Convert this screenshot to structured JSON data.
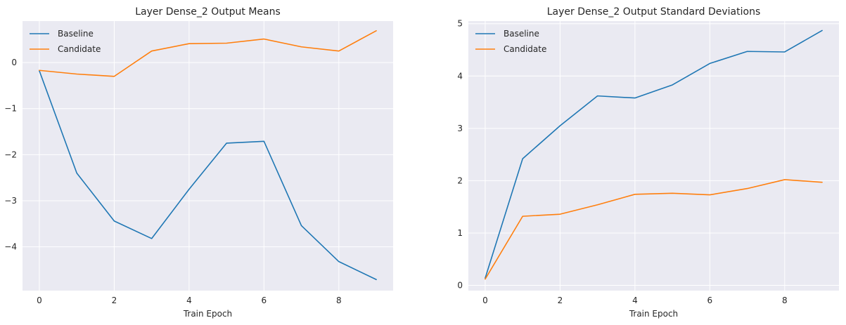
{
  "chart_data": [
    {
      "type": "line",
      "title": "Layer Dense_2 Output Means",
      "xlabel": "Train Epoch",
      "ylabel": "",
      "x": [
        0,
        1,
        2,
        3,
        4,
        5,
        6,
        7,
        8,
        9
      ],
      "xlim": [
        -0.45,
        9.45
      ],
      "ylim": [
        -4.95,
        0.9
      ],
      "xticks": [
        0,
        2,
        4,
        6,
        8
      ],
      "yticks": [
        0,
        -1,
        -2,
        -3,
        -4
      ],
      "ytick_labels": [
        "0",
        "−1",
        "−2",
        "−3",
        "−4"
      ],
      "grid": true,
      "legend_position": "top-left",
      "series": [
        {
          "name": "Baseline",
          "color": "#1f77b4",
          "values": [
            -0.18,
            -2.4,
            -3.44,
            -3.82,
            -2.75,
            -1.75,
            -1.71,
            -3.54,
            -4.32,
            -4.71
          ]
        },
        {
          "name": "Candidate",
          "color": "#ff7f0e",
          "values": [
            -0.17,
            -0.25,
            -0.3,
            0.25,
            0.41,
            0.42,
            0.51,
            0.34,
            0.25,
            0.69
          ]
        }
      ]
    },
    {
      "type": "line",
      "title": "Layer Dense_2 Output Standard Deviations",
      "xlabel": "Train Epoch",
      "ylabel": "",
      "x": [
        0,
        1,
        2,
        3,
        4,
        5,
        6,
        7,
        8,
        9
      ],
      "xlim": [
        -0.45,
        9.45
      ],
      "ylim": [
        -0.1,
        5.05
      ],
      "xticks": [
        0,
        2,
        4,
        6,
        8
      ],
      "yticks": [
        0,
        1,
        2,
        3,
        4,
        5
      ],
      "ytick_labels": [
        "0",
        "1",
        "2",
        "3",
        "4",
        "5"
      ],
      "grid": true,
      "legend_position": "top-left",
      "series": [
        {
          "name": "Baseline",
          "color": "#1f77b4",
          "values": [
            0.14,
            2.42,
            3.05,
            3.62,
            3.58,
            3.83,
            4.24,
            4.47,
            4.46,
            4.87
          ]
        },
        {
          "name": "Candidate",
          "color": "#ff7f0e",
          "values": [
            0.12,
            1.32,
            1.36,
            1.54,
            1.74,
            1.76,
            1.73,
            1.85,
            2.02,
            1.97
          ]
        }
      ]
    }
  ]
}
